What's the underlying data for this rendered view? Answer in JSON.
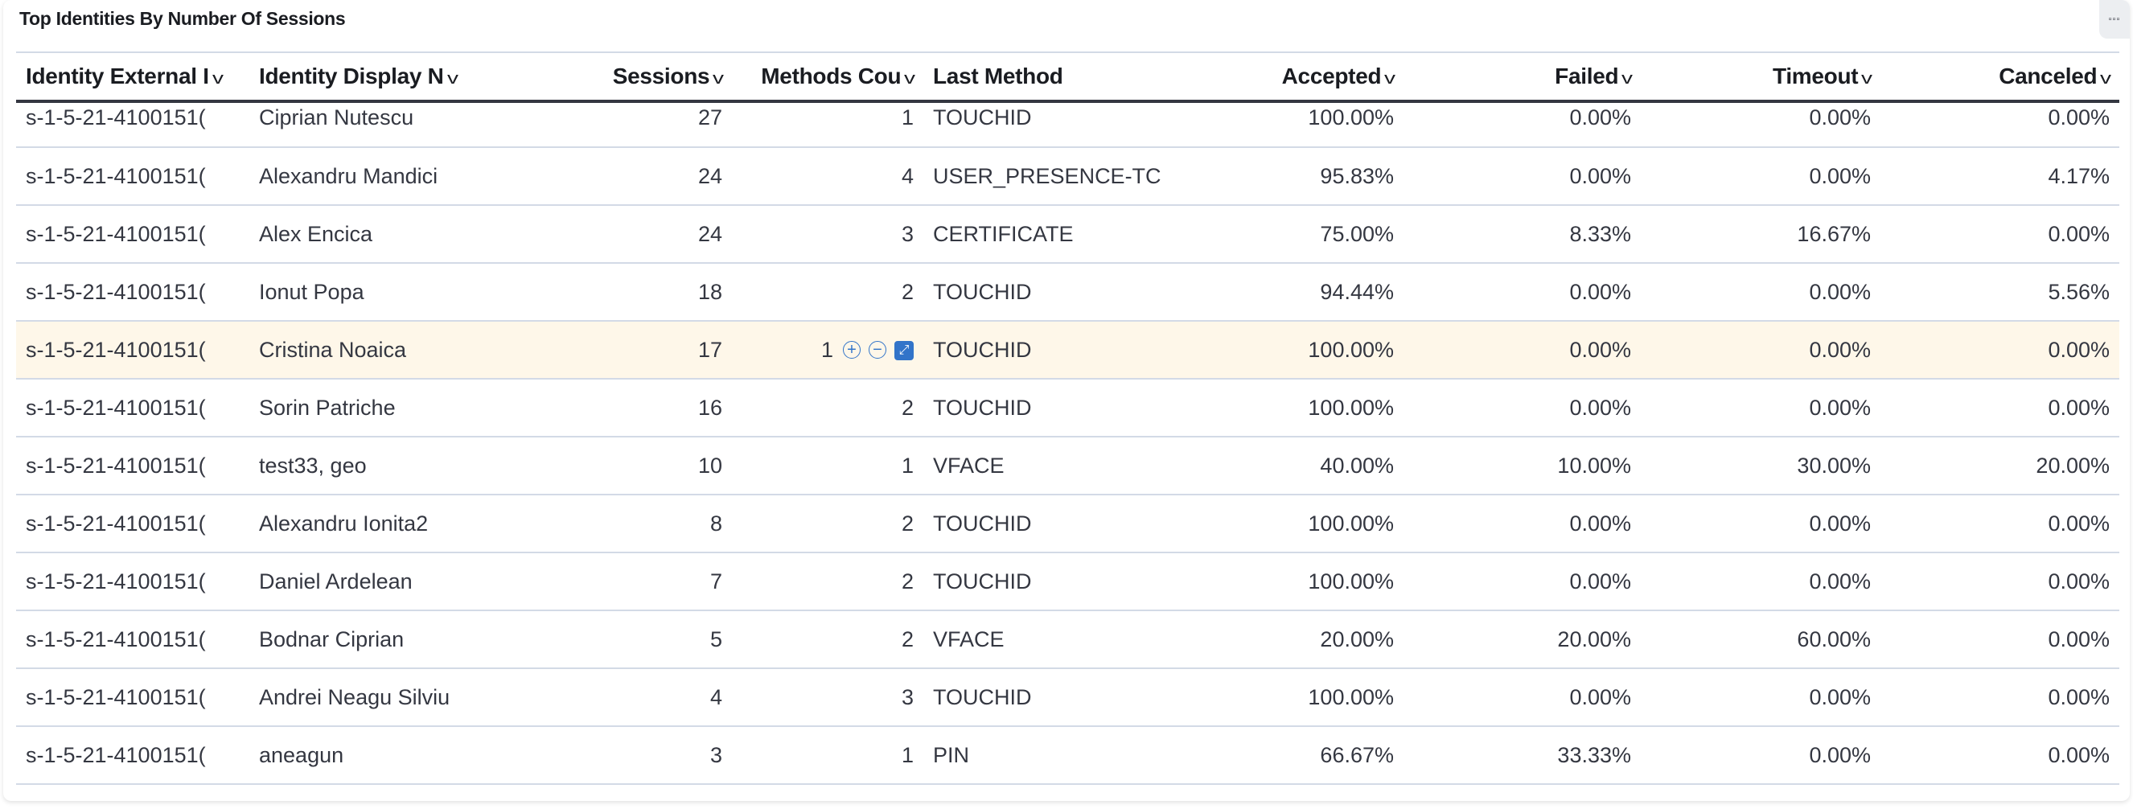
{
  "panel": {
    "title": "Top Identities By Number Of Sessions",
    "menu_icon": "options-dots-icon"
  },
  "columns": [
    {
      "label": "Identity External I",
      "align": "l"
    },
    {
      "label": "Identity Display N",
      "align": "l"
    },
    {
      "label": "Sessions",
      "align": "r"
    },
    {
      "label": "Methods Cou",
      "align": "r"
    },
    {
      "label": "Last Method",
      "align": "l"
    },
    {
      "label": "Accepted",
      "align": "r"
    },
    {
      "label": "Failed",
      "align": "r"
    },
    {
      "label": "Timeout",
      "align": "r"
    },
    {
      "label": "Canceled",
      "align": "r"
    }
  ],
  "rows": [
    [
      "s-1-5-21-4100151(",
      "Ciprian Nutescu",
      "27",
      "1",
      "TOUCHID",
      "100.00%",
      "0.00%",
      "0.00%",
      "0.00%"
    ],
    [
      "s-1-5-21-4100151(",
      "Alexandru Mandici",
      "24",
      "4",
      "USER_PRESENCE-TC",
      "95.83%",
      "0.00%",
      "0.00%",
      "4.17%"
    ],
    [
      "s-1-5-21-4100151(",
      "Alex Encica",
      "24",
      "3",
      "CERTIFICATE",
      "75.00%",
      "8.33%",
      "16.67%",
      "0.00%"
    ],
    [
      "s-1-5-21-4100151(",
      "Ionut Popa",
      "18",
      "2",
      "TOUCHID",
      "94.44%",
      "0.00%",
      "0.00%",
      "5.56%"
    ],
    [
      "s-1-5-21-4100151(",
      "Cristina Noaica",
      "17",
      "1",
      "TOUCHID",
      "100.00%",
      "0.00%",
      "0.00%",
      "0.00%"
    ],
    [
      "s-1-5-21-4100151(",
      "Sorin Patriche",
      "16",
      "2",
      "TOUCHID",
      "100.00%",
      "0.00%",
      "0.00%",
      "0.00%"
    ],
    [
      "s-1-5-21-4100151(",
      "test33, geo",
      "10",
      "1",
      "VFACE",
      "40.00%",
      "10.00%",
      "30.00%",
      "20.00%"
    ],
    [
      "s-1-5-21-4100151(",
      "Alexandru Ionita2",
      "8",
      "2",
      "TOUCHID",
      "100.00%",
      "0.00%",
      "0.00%",
      "0.00%"
    ],
    [
      "s-1-5-21-4100151(",
      "Daniel Ardelean",
      "7",
      "2",
      "TOUCHID",
      "100.00%",
      "0.00%",
      "0.00%",
      "0.00%"
    ],
    [
      "s-1-5-21-4100151(",
      "Bodnar Ciprian",
      "5",
      "2",
      "VFACE",
      "20.00%",
      "20.00%",
      "60.00%",
      "0.00%"
    ],
    [
      "s-1-5-21-4100151(",
      "Andrei Neagu Silviu",
      "4",
      "3",
      "TOUCHID",
      "100.00%",
      "0.00%",
      "0.00%",
      "0.00%"
    ],
    [
      "s-1-5-21-4100151(",
      "aneagun",
      "3",
      "1",
      "PIN",
      "66.67%",
      "33.33%",
      "0.00%",
      "0.00%"
    ]
  ],
  "hovered_row": 4,
  "hover_actions": {
    "column": 3,
    "icons": [
      "filter-for-value-icon",
      "filter-out-value-icon",
      "expand-cell-icon"
    ]
  },
  "colors": {
    "hover_row": "#fef7e9",
    "action": "#3274c9",
    "header_rule": "#343741"
  }
}
